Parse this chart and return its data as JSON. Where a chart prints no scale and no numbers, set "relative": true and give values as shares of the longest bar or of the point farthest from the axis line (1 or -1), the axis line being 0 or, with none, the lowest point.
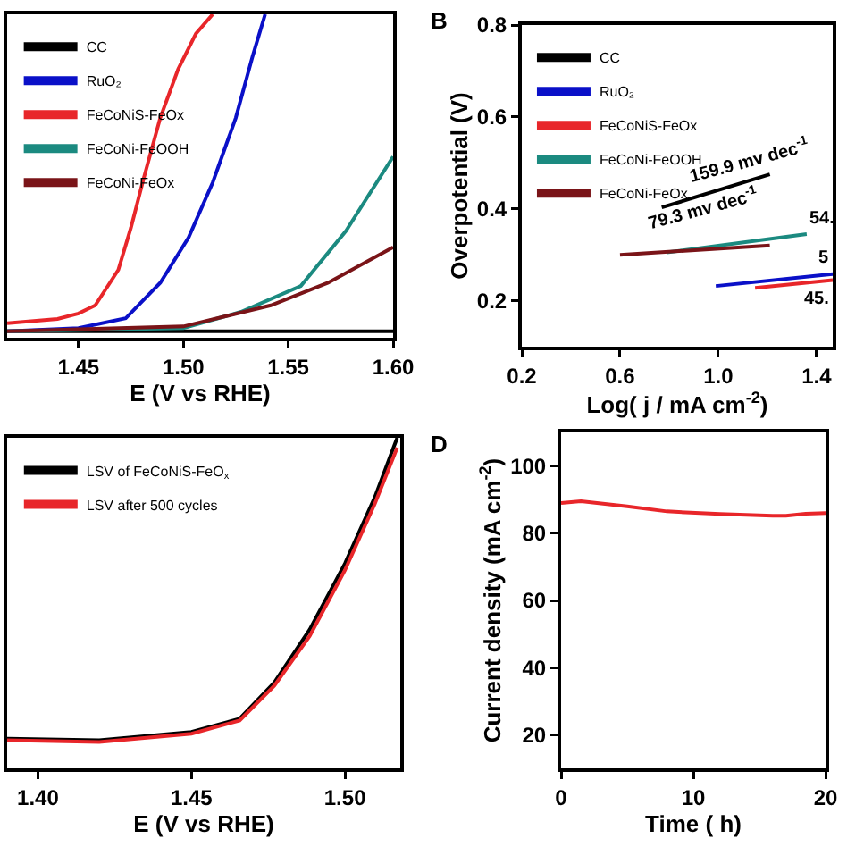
{
  "chart_data": [
    {
      "type": "line",
      "xlabel": "E (V vs RHE)",
      "relative": true,
      "xlim": [
        1.416,
        1.6
      ],
      "xticks": [
        1.45,
        {
          "value": 1.5,
          "label": "1.50"
        },
        1.55,
        {
          "value": 1.6,
          "label": "1.60"
        }
      ],
      "tick_labels": "x",
      "legend": "top left",
      "marker": "none",
      "line_style": "solid",
      "grid": false,
      "series": [
        {
          "name": "CC",
          "color": "#000000",
          "x": [
            1.416,
            1.6
          ],
          "values": [
            0.02,
            0.02
          ]
        },
        {
          "name": "RuO₂",
          "color": "#0a10c8",
          "x": [
            1.416,
            1.45,
            1.4725,
            1.489,
            1.5025,
            1.514,
            1.525,
            1.533,
            1.539
          ],
          "values": [
            0.02,
            0.03,
            0.06,
            0.17,
            0.31,
            0.48,
            0.68,
            0.87,
            1.0
          ]
        },
        {
          "name": "FeCoNiS-FeOx",
          "color": "#e8262a",
          "x": [
            1.416,
            1.44,
            1.45,
            1.458,
            1.469,
            1.475,
            1.481,
            1.489,
            1.4975,
            1.506,
            1.514
          ],
          "values": [
            0.045,
            0.058,
            0.075,
            0.1,
            0.21,
            0.34,
            0.49,
            0.68,
            0.83,
            0.94,
            1.0
          ]
        },
        {
          "name": "FeCoNi-FeOOH",
          "color": "#1b8a80",
          "x": [
            1.416,
            1.5,
            1.5275,
            1.556,
            1.5775,
            1.6
          ],
          "values": [
            0.02,
            0.03,
            0.08,
            0.16,
            0.33,
            0.56
          ]
        },
        {
          "name": "FeCoNi-FeOx",
          "color": "#7a1418",
          "x": [
            1.416,
            1.5,
            1.5417,
            1.569,
            1.6
          ],
          "values": [
            0.02,
            0.035,
            0.1,
            0.17,
            0.28
          ]
        }
      ]
    },
    {
      "type": "line",
      "xlabel": "Log( j / mA cm$^{-2}$)",
      "ylabel": "Overpotential (V)",
      "xlim": [
        0.2,
        1.466
      ],
      "xticks": [
        0.2,
        0.6,
        {
          "value": 1.0,
          "label": "1.0"
        },
        1.4
      ],
      "ylim": [
        0.1,
        0.8
      ],
      "yticks": [
        0.2,
        0.4,
        0.6,
        0.8
      ],
      "legend": "top left",
      "marker": "none",
      "line_style": "solid",
      "grid": false,
      "annotations": [
        "B",
        {
          "text": "159.9 mv dec$^{-1}$",
          "x": 0.77,
          "y": 0.403
        },
        {
          "text": "79.3 mv dec$^{-1}$",
          "x": 0.6,
          "y": 0.3
        },
        {
          "text": "54.",
          "x": 1.36,
          "y": 0.345
        },
        {
          "text": "5",
          "x": 1.466,
          "y": 0.258
        },
        {
          "text": "45.",
          "x": 1.466,
          "y": 0.245
        }
      ],
      "series": [
        {
          "name": "CC",
          "color": "#000000",
          "x": [
            0.77,
            1.21
          ],
          "values": [
            0.403,
            0.475
          ]
        },
        {
          "name": "RuO₂",
          "color": "#0a10c8",
          "x": [
            0.99,
            1.466
          ],
          "values": [
            0.232,
            0.258
          ]
        },
        {
          "name": "FeCoNiS-FeOx",
          "color": "#e8262a",
          "x": [
            1.15,
            1.466
          ],
          "values": [
            0.228,
            0.245
          ]
        },
        {
          "name": "FeCoNi-FeOOH",
          "color": "#1b8a80",
          "x": [
            0.79,
            1.36
          ],
          "values": [
            0.305,
            0.345
          ]
        },
        {
          "name": "FeCoNi-FeOx",
          "color": "#7a1418",
          "x": [
            0.6,
            1.21
          ],
          "values": [
            0.3,
            0.32
          ]
        }
      ]
    },
    {
      "type": "line",
      "xlabel": "E (V vs RHE)",
      "relative": true,
      "xlim": [
        1.39,
        1.518
      ],
      "xticks": [
        {
          "value": 1.4,
          "label": "1.40"
        },
        1.45,
        {
          "value": 1.5,
          "label": "1.50"
        }
      ],
      "tick_labels": "x",
      "legend": "top left",
      "marker": "none",
      "line_style": "solid",
      "grid": false,
      "series": [
        {
          "name": "LSV of FeCoNiS-FeO$_{x}$",
          "color": "#000000",
          "x": [
            1.39,
            1.42,
            1.45,
            1.4657,
            1.477,
            1.4885,
            1.5,
            1.5097,
            1.517
          ],
          "values": [
            0.09,
            0.085,
            0.11,
            0.15,
            0.26,
            0.42,
            0.62,
            0.82,
            1.0
          ]
        },
        {
          "name": "LSV after 500 cycles",
          "color": "#e8262a",
          "x": [
            1.39,
            1.42,
            1.45,
            1.4657,
            1.477,
            1.4885,
            1.5,
            1.5097,
            1.517
          ],
          "values": [
            0.085,
            0.08,
            0.105,
            0.145,
            0.25,
            0.4,
            0.6,
            0.8,
            0.97
          ]
        }
      ]
    },
    {
      "type": "line",
      "xlabel": "Time ( h)",
      "ylabel": "Current density (mA cm$^{-2}$)",
      "xlim": [
        0,
        20
      ],
      "xticks": [
        0,
        10,
        20
      ],
      "ylim": [
        10,
        110
      ],
      "yticks": [
        20,
        40,
        60,
        80,
        100
      ],
      "marker": "none",
      "line_style": "solid",
      "grid": false,
      "annotations": [
        "D"
      ],
      "series": [
        {
          "color": "#e8262a",
          "x": [
            0,
            1.5,
            5,
            8,
            12,
            16,
            17,
            18.5,
            20
          ],
          "values": [
            89,
            89.5,
            88,
            86.5,
            85.7,
            85.2,
            85.2,
            85.8,
            86
          ]
        }
      ]
    }
  ]
}
